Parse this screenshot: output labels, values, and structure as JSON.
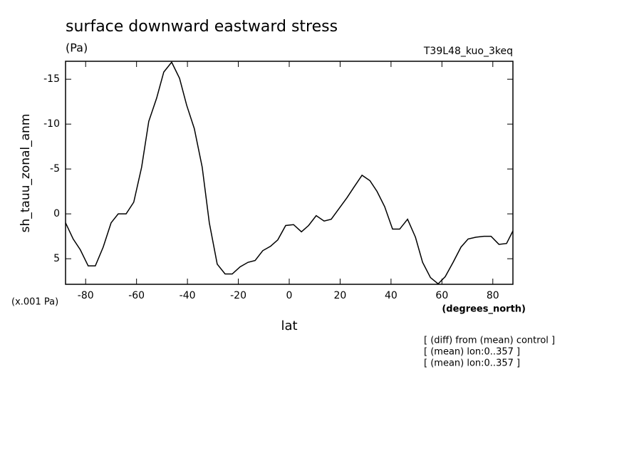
{
  "chart_data": {
    "type": "line",
    "title": "surface downward eastward stress",
    "subtitle": "(Pa)",
    "run_label": "T39L48_kuo_3keq",
    "y_label": "sh_tauu_zonal_anm",
    "y_unit": "(x.001 Pa)",
    "x_unit": "(degrees_north)",
    "x_label": "lat",
    "notes": [
      "[ (diff) from (mean) control ]",
      "[ (mean) lon:0..357 ]",
      "[ (mean) lon:0..357 ]"
    ],
    "xlim": [
      -87.9,
      87.9
    ],
    "xticks": [
      -80,
      -60,
      -40,
      -20,
      0,
      20,
      40,
      60,
      80
    ],
    "ylim": [
      7.85,
      -17
    ],
    "yticks": [
      -15,
      -10,
      -5,
      0,
      5
    ],
    "x": [
      -87.9,
      -84.9,
      -82.1,
      -79.0,
      -76.2,
      -73.1,
      -70.0,
      -67.2,
      -64.1,
      -61.1,
      -58.0,
      -55.2,
      -52.1,
      -49.3,
      -46.2,
      -43.1,
      -40.3,
      -37.3,
      -34.2,
      -31.4,
      -28.3,
      -25.2,
      -22.4,
      -19.3,
      -16.2,
      -13.4,
      -10.4,
      -7.3,
      -4.5,
      -1.4,
      1.7,
      4.8,
      7.6,
      10.6,
      13.7,
      16.5,
      19.6,
      22.7,
      25.5,
      28.6,
      31.7,
      34.5,
      37.5,
      40.6,
      43.4,
      46.5,
      49.6,
      52.4,
      55.5,
      58.5,
      61.3,
      64.4,
      67.5,
      70.3,
      73.4,
      76.5,
      79.3,
      82.4,
      85.4,
      87.9
    ],
    "series": [
      {
        "color": "#000000",
        "values": [
          1.0,
          2.8,
          4.0,
          5.8,
          5.8,
          3.7,
          1.0,
          0,
          0,
          -1.3,
          -5.2,
          -10.3,
          -12.9,
          -15.8,
          -16.9,
          -15.1,
          -12.1,
          -9.5,
          -5.2,
          1.0,
          5.6,
          6.7,
          6.7,
          5.9,
          5.4,
          5.2,
          4.1,
          3.6,
          2.9,
          1.3,
          1.2,
          2.0,
          1.3,
          0.2,
          0.8,
          0.6,
          -0.6,
          -1.8,
          -3.0,
          -4.3,
          -3.7,
          -2.5,
          -0.8,
          1.7,
          1.7,
          0.6,
          2.6,
          5.4,
          7.1,
          7.8,
          7.0,
          5.4,
          3.7,
          2.8,
          2.6,
          2.5,
          2.5,
          3.4,
          3.3,
          1.9
        ]
      }
    ]
  }
}
